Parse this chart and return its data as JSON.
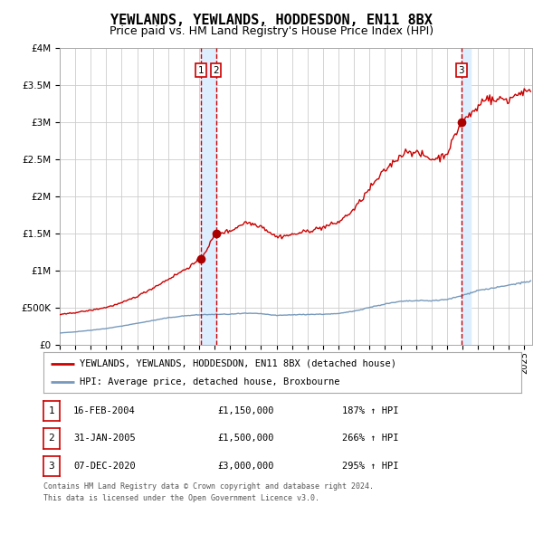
{
  "title": "YEWLANDS, YEWLANDS, HODDESDON, EN11 8BX",
  "subtitle": "Price paid vs. HM Land Registry's House Price Index (HPI)",
  "title_fontsize": 11,
  "subtitle_fontsize": 9,
  "background_color": "#ffffff",
  "plot_bg_color": "#ffffff",
  "grid_color": "#cccccc",
  "red_line_color": "#cc0000",
  "blue_line_color": "#7799bb",
  "sale_marker_color": "#aa0000",
  "vline_color": "#cc0000",
  "vband_color": "#ddeeff",
  "ylim": [
    0,
    4000000
  ],
  "yticks": [
    0,
    500000,
    1000000,
    1500000,
    2000000,
    2500000,
    3000000,
    3500000,
    4000000
  ],
  "ytick_labels": [
    "£0",
    "£500K",
    "£1M",
    "£1.5M",
    "£2M",
    "£2.5M",
    "£3M",
    "£3.5M",
    "£4M"
  ],
  "xlim_start": 1995.0,
  "xlim_end": 2025.5,
  "sale_events": [
    {
      "label": "1",
      "date_decimal": 2004.12,
      "price": 1150000,
      "date_str": "16-FEB-2004",
      "pct": "187%"
    },
    {
      "label": "2",
      "date_decimal": 2005.08,
      "price": 1500000,
      "date_str": "31-JAN-2005",
      "pct": "266%"
    },
    {
      "label": "3",
      "date_decimal": 2020.93,
      "price": 3000000,
      "date_str": "07-DEC-2020",
      "pct": "295%"
    }
  ],
  "vband_ranges": [
    [
      2004.12,
      2005.08
    ],
    [
      2020.93,
      2021.5
    ]
  ],
  "legend_line1": "YEWLANDS, YEWLANDS, HODDESDON, EN11 8BX (detached house)",
  "legend_line2": "HPI: Average price, detached house, Broxbourne",
  "footer1": "Contains HM Land Registry data © Crown copyright and database right 2024.",
  "footer2": "This data is licensed under the Open Government Licence v3.0.",
  "table_rows": [
    [
      "1",
      "16-FEB-2004",
      "£1,150,000",
      "187% ↑ HPI"
    ],
    [
      "2",
      "31-JAN-2005",
      "£1,500,000",
      "266% ↑ HPI"
    ],
    [
      "3",
      "07-DEC-2020",
      "£3,000,000",
      "295% ↑ HPI"
    ]
  ]
}
